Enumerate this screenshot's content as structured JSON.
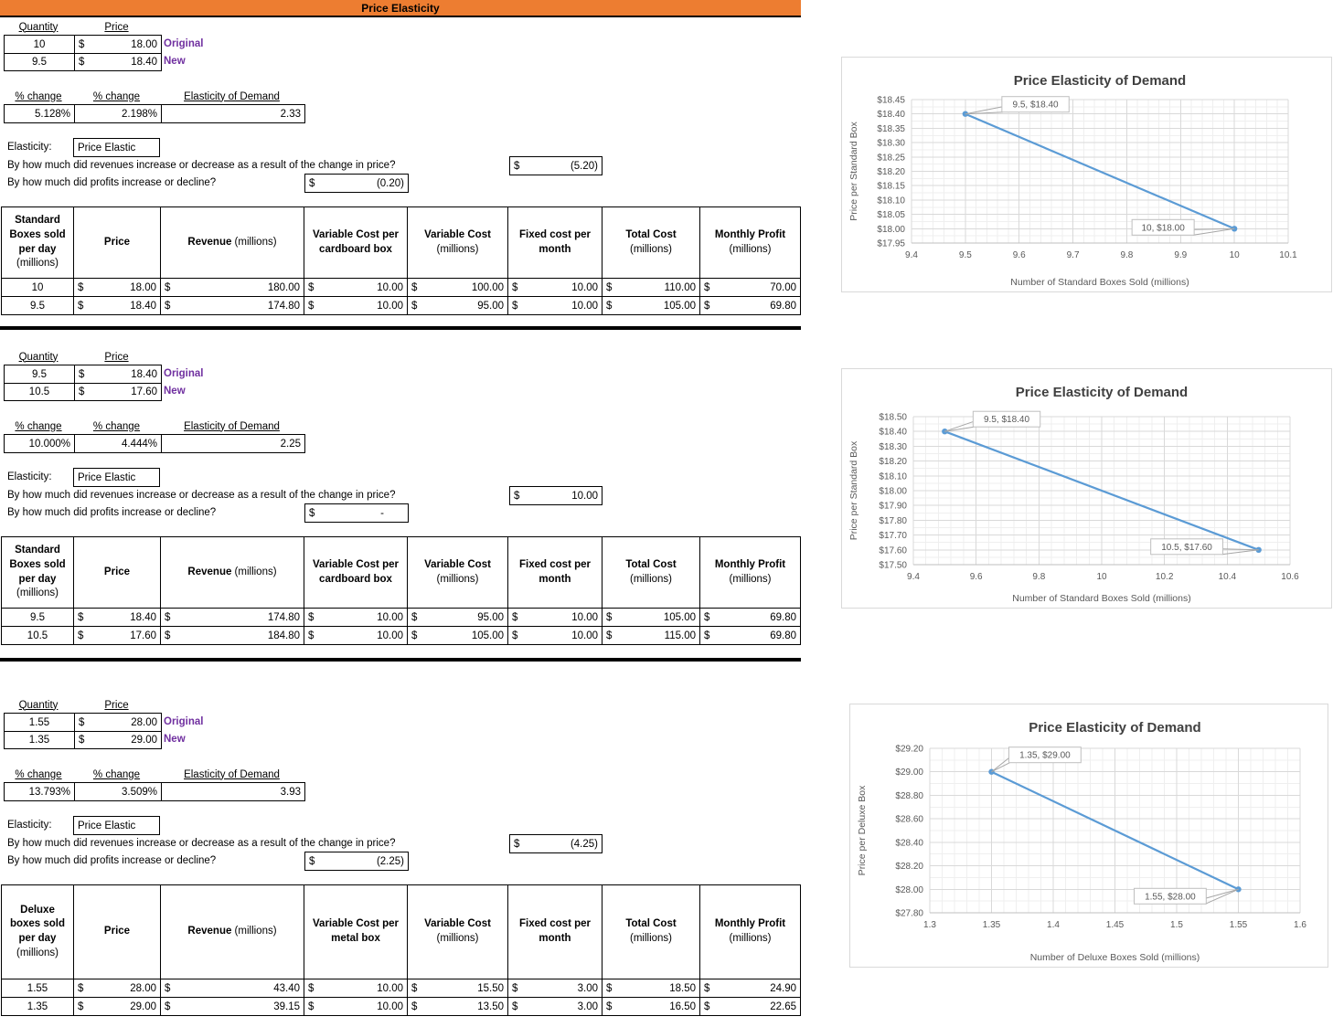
{
  "app": {
    "title_bar": "Price Elasticity"
  },
  "currency": "$",
  "sections": [
    {
      "qty_table": {
        "quantity_header": "Quantity",
        "price_header": "Price",
        "rows": [
          {
            "quantity": "10",
            "price": "18.00",
            "tag": "Original"
          },
          {
            "quantity": "9.5",
            "price": "18.40",
            "tag": "New"
          }
        ]
      },
      "pct_table": {
        "headers": [
          "% change",
          "% change",
          "Elasticity of Demand"
        ],
        "values": [
          "5.128%",
          "2.198%",
          "2.33"
        ]
      },
      "elasticity": {
        "label": "Elasticity:",
        "value": "Price Elastic"
      },
      "questions": [
        {
          "text": "By how much did revenues increase or decrease as a result of the change in price?",
          "answer": "(5.20)"
        },
        {
          "text": "By how much did profits increase or decline?",
          "answer": "(0.20)"
        }
      ],
      "cost_table": {
        "headers": [
          {
            "bold": "Standard Boxes sold per day",
            "normal": " (millions)"
          },
          {
            "bold": "Price",
            "normal": ""
          },
          {
            "bold": "Revenue",
            "normal": " (millions)"
          },
          {
            "bold": "Variable Cost per cardboard box",
            "normal": ""
          },
          {
            "bold": "Variable Cost",
            "normal": " (millions)"
          },
          {
            "bold": "Fixed cost per month",
            "normal": ""
          },
          {
            "bold": "Total Cost",
            "normal": " (millions)"
          },
          {
            "bold": "Monthly Profit",
            "normal": " (millions)"
          }
        ],
        "rows": [
          [
            "10",
            "18.00",
            "180.00",
            "10.00",
            "100.00",
            "10.00",
            "110.00",
            "70.00"
          ],
          [
            "9.5",
            "18.40",
            "174.80",
            "10.00",
            "95.00",
            "10.00",
            "105.00",
            "69.80"
          ]
        ]
      }
    },
    {
      "qty_table": {
        "quantity_header": "Quantity",
        "price_header": "Price",
        "rows": [
          {
            "quantity": "9.5",
            "price": "18.40",
            "tag": "Original"
          },
          {
            "quantity": "10.5",
            "price": "17.60",
            "tag": "New"
          }
        ]
      },
      "pct_table": {
        "headers": [
          "% change",
          "% change",
          "Elasticity of Demand"
        ],
        "values": [
          "10.000%",
          "4.444%",
          "2.25"
        ]
      },
      "elasticity": {
        "label": "Elasticity:",
        "value": "Price Elastic"
      },
      "questions": [
        {
          "text": "By how much did revenues increase or decrease as a result of the change in price?",
          "answer": "10.00"
        },
        {
          "text": "By how much did profits increase or decline?",
          "answer": "-"
        }
      ],
      "cost_table": {
        "headers": [
          {
            "bold": "Standard Boxes sold per day",
            "normal": " (millions)"
          },
          {
            "bold": "Price",
            "normal": ""
          },
          {
            "bold": "Revenue",
            "normal": " (millions)"
          },
          {
            "bold": "Variable Cost per cardboard box",
            "normal": ""
          },
          {
            "bold": "Variable Cost",
            "normal": " (millions)"
          },
          {
            "bold": "Fixed cost per month",
            "normal": ""
          },
          {
            "bold": "Total Cost",
            "normal": " (millions)"
          },
          {
            "bold": "Monthly Profit",
            "normal": " (millions)"
          }
        ],
        "rows": [
          [
            "9.5",
            "18.40",
            "174.80",
            "10.00",
            "95.00",
            "10.00",
            "105.00",
            "69.80"
          ],
          [
            "10.5",
            "17.60",
            "184.80",
            "10.00",
            "105.00",
            "10.00",
            "115.00",
            "69.80"
          ]
        ]
      }
    },
    {
      "qty_table": {
        "quantity_header": "Quantity",
        "price_header": "Price",
        "rows": [
          {
            "quantity": "1.55",
            "price": "28.00",
            "tag": "Original"
          },
          {
            "quantity": "1.35",
            "price": "29.00",
            "tag": "New"
          }
        ]
      },
      "pct_table": {
        "headers": [
          "% change",
          "% change",
          "Elasticity of Demand"
        ],
        "values": [
          "13.793%",
          "3.509%",
          "3.93"
        ]
      },
      "elasticity": {
        "label": "Elasticity:",
        "value": "Price Elastic"
      },
      "questions": [
        {
          "text": "By how much did revenues increase or decrease as a result of the change in price?",
          "answer": "(4.25)"
        },
        {
          "text": "By how much did profits increase or decline?",
          "answer": "(2.25)"
        }
      ],
      "cost_table": {
        "headers": [
          {
            "bold": "Deluxe boxes sold per day",
            "normal": " (millions)"
          },
          {
            "bold": "Price",
            "normal": ""
          },
          {
            "bold": "Revenue",
            "normal": " (millions)"
          },
          {
            "bold": "Variable Cost per metal box",
            "normal": ""
          },
          {
            "bold": "Variable Cost",
            "normal": " (millions)"
          },
          {
            "bold": "Fixed cost per month",
            "normal": ""
          },
          {
            "bold": "Total Cost",
            "normal": " (millions)"
          },
          {
            "bold": "Monthly Profit",
            "normal": " (millions)"
          }
        ],
        "rows": [
          [
            "1.55",
            "28.00",
            "43.40",
            "10.00",
            "15.50",
            "3.00",
            "18.50",
            "24.90"
          ],
          [
            "1.35",
            "29.00",
            "39.15",
            "10.00",
            "13.50",
            "3.00",
            "16.50",
            "22.65"
          ]
        ]
      }
    }
  ],
  "chart_data": [
    {
      "type": "line",
      "title": "Price Elasticity of Demand",
      "xlabel": "Number of Standard Boxes Sold (millions)",
      "ylabel": "Price per Standard Box",
      "x": [
        9.5,
        10
      ],
      "y": [
        18.4,
        18.0
      ],
      "point_labels": [
        "9.5, $18.40",
        "10, $18.00"
      ],
      "xlim": [
        9.4,
        10.1
      ],
      "ylim": [
        17.95,
        18.45
      ],
      "grid": true,
      "legend": "none",
      "x_ticks": [
        {
          "v": 9.4,
          "label": "9.4"
        },
        {
          "v": 9.5,
          "label": "9.5"
        },
        {
          "v": 9.6,
          "label": "9.6"
        },
        {
          "v": 9.7,
          "label": "9.7"
        },
        {
          "v": 9.8,
          "label": "9.8"
        },
        {
          "v": 9.9,
          "label": "9.9"
        },
        {
          "v": 10,
          "label": "10"
        },
        {
          "v": 10.1,
          "label": "10.1"
        }
      ],
      "y_ticks": [
        {
          "v": 17.95,
          "label": "$17.95"
        },
        {
          "v": 18.0,
          "label": "$18.00"
        },
        {
          "v": 18.05,
          "label": "$18.05"
        },
        {
          "v": 18.1,
          "label": "$18.10"
        },
        {
          "v": 18.15,
          "label": "$18.15"
        },
        {
          "v": 18.2,
          "label": "$18.20"
        },
        {
          "v": 18.25,
          "label": "$18.25"
        },
        {
          "v": 18.3,
          "label": "$18.30"
        },
        {
          "v": 18.35,
          "label": "$18.35"
        },
        {
          "v": 18.4,
          "label": "$18.40"
        },
        {
          "v": 18.45,
          "label": "$18.45"
        }
      ]
    },
    {
      "type": "line",
      "title": "Price Elasticity of Demand",
      "xlabel": "Number of Standard Boxes Sold (millions)",
      "ylabel": "Price per Standard Box",
      "x": [
        9.5,
        10.5
      ],
      "y": [
        18.4,
        17.6
      ],
      "point_labels": [
        "9.5, $18.40",
        "10.5, $17.60"
      ],
      "xlim": [
        9.4,
        10.6
      ],
      "ylim": [
        17.5,
        18.5
      ],
      "grid": true,
      "legend": "none",
      "x_ticks": [
        {
          "v": 9.4,
          "label": "9.4"
        },
        {
          "v": 9.6,
          "label": "9.6"
        },
        {
          "v": 9.8,
          "label": "9.8"
        },
        {
          "v": 10,
          "label": "10"
        },
        {
          "v": 10.2,
          "label": "10.2"
        },
        {
          "v": 10.4,
          "label": "10.4"
        },
        {
          "v": 10.6,
          "label": "10.6"
        }
      ],
      "y_ticks": [
        {
          "v": 17.5,
          "label": "$17.50"
        },
        {
          "v": 17.6,
          "label": "$17.60"
        },
        {
          "v": 17.7,
          "label": "$17.70"
        },
        {
          "v": 17.8,
          "label": "$17.80"
        },
        {
          "v": 17.9,
          "label": "$17.90"
        },
        {
          "v": 18.0,
          "label": "$18.00"
        },
        {
          "v": 18.1,
          "label": "$18.10"
        },
        {
          "v": 18.2,
          "label": "$18.20"
        },
        {
          "v": 18.3,
          "label": "$18.30"
        },
        {
          "v": 18.4,
          "label": "$18.40"
        },
        {
          "v": 18.5,
          "label": "$18.50"
        }
      ]
    },
    {
      "type": "line",
      "title": "Price Elasticity of Demand",
      "xlabel": "Number of Deluxe Boxes Sold (millions)",
      "ylabel": "Price per Deluxe Box",
      "x": [
        1.35,
        1.55
      ],
      "y": [
        29.0,
        28.0
      ],
      "point_labels": [
        "1.35, $29.00",
        "1.55, $28.00"
      ],
      "xlim": [
        1.3,
        1.6
      ],
      "ylim": [
        27.8,
        29.2
      ],
      "grid": true,
      "legend": "none",
      "x_ticks": [
        {
          "v": 1.3,
          "label": "1.3"
        },
        {
          "v": 1.35,
          "label": "1.35"
        },
        {
          "v": 1.4,
          "label": "1.4"
        },
        {
          "v": 1.45,
          "label": "1.45"
        },
        {
          "v": 1.5,
          "label": "1.5"
        },
        {
          "v": 1.55,
          "label": "1.55"
        },
        {
          "v": 1.6,
          "label": "1.6"
        }
      ],
      "y_ticks": [
        {
          "v": 27.8,
          "label": "$27.80"
        },
        {
          "v": 28.0,
          "label": "$28.00"
        },
        {
          "v": 28.2,
          "label": "$28.20"
        },
        {
          "v": 28.4,
          "label": "$28.40"
        },
        {
          "v": 28.6,
          "label": "$28.60"
        },
        {
          "v": 28.8,
          "label": "$28.80"
        },
        {
          "v": 29.0,
          "label": "$29.00"
        },
        {
          "v": 29.2,
          "label": "$29.20"
        }
      ]
    }
  ]
}
